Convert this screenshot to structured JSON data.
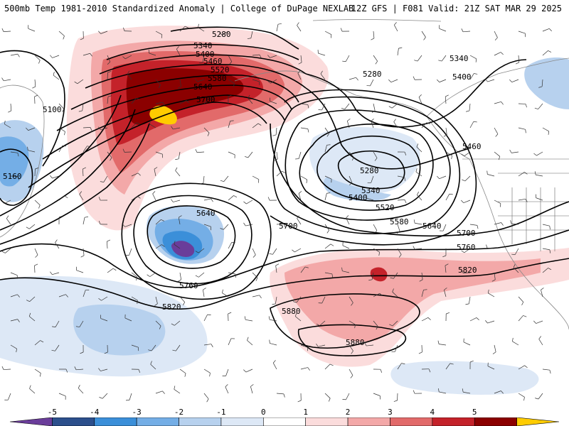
{
  "header": {
    "title_left": "500mb Temp 1981-2010 Standardized Anomaly | College of DuPage NEXLAB",
    "title_right": "12Z GFS | F081 Valid: 21Z SAT MAR 29 2025"
  },
  "legend": {
    "ticks": [
      "-5",
      "-4",
      "-3",
      "-2",
      "-1",
      "0",
      "1",
      "2",
      "3",
      "4",
      "5"
    ],
    "colors": [
      "#6a3d9a",
      "#2c4f8c",
      "#3b8fd9",
      "#74aee6",
      "#b7d1ee",
      "#dde8f6",
      "#ffffff",
      "#fbdcdc",
      "#f3a8a8",
      "#e26a6a",
      "#c4222a",
      "#8b0000",
      "#ffcc00"
    ]
  },
  "map": {
    "background": "#ffffff",
    "height_labels": [
      {
        "text": "5280"
      },
      {
        "text": "5340"
      },
      {
        "text": "5400"
      },
      {
        "text": "5460"
      },
      {
        "text": "5520"
      },
      {
        "text": "5580"
      },
      {
        "text": "5640"
      },
      {
        "text": "5700"
      },
      {
        "text": "5100"
      },
      {
        "text": "5160"
      },
      {
        "text": "5280"
      },
      {
        "text": "5340"
      },
      {
        "text": "5400"
      },
      {
        "text": "5460"
      },
      {
        "text": "5280"
      },
      {
        "text": "5340"
      },
      {
        "text": "5400"
      },
      {
        "text": "5520"
      },
      {
        "text": "5580"
      },
      {
        "text": "5640"
      },
      {
        "text": "5700"
      },
      {
        "text": "5760"
      },
      {
        "text": "5820"
      },
      {
        "text": "5640"
      },
      {
        "text": "5700"
      },
      {
        "text": "5760"
      },
      {
        "text": "5820"
      },
      {
        "text": "5880"
      },
      {
        "text": "5880"
      }
    ]
  }
}
